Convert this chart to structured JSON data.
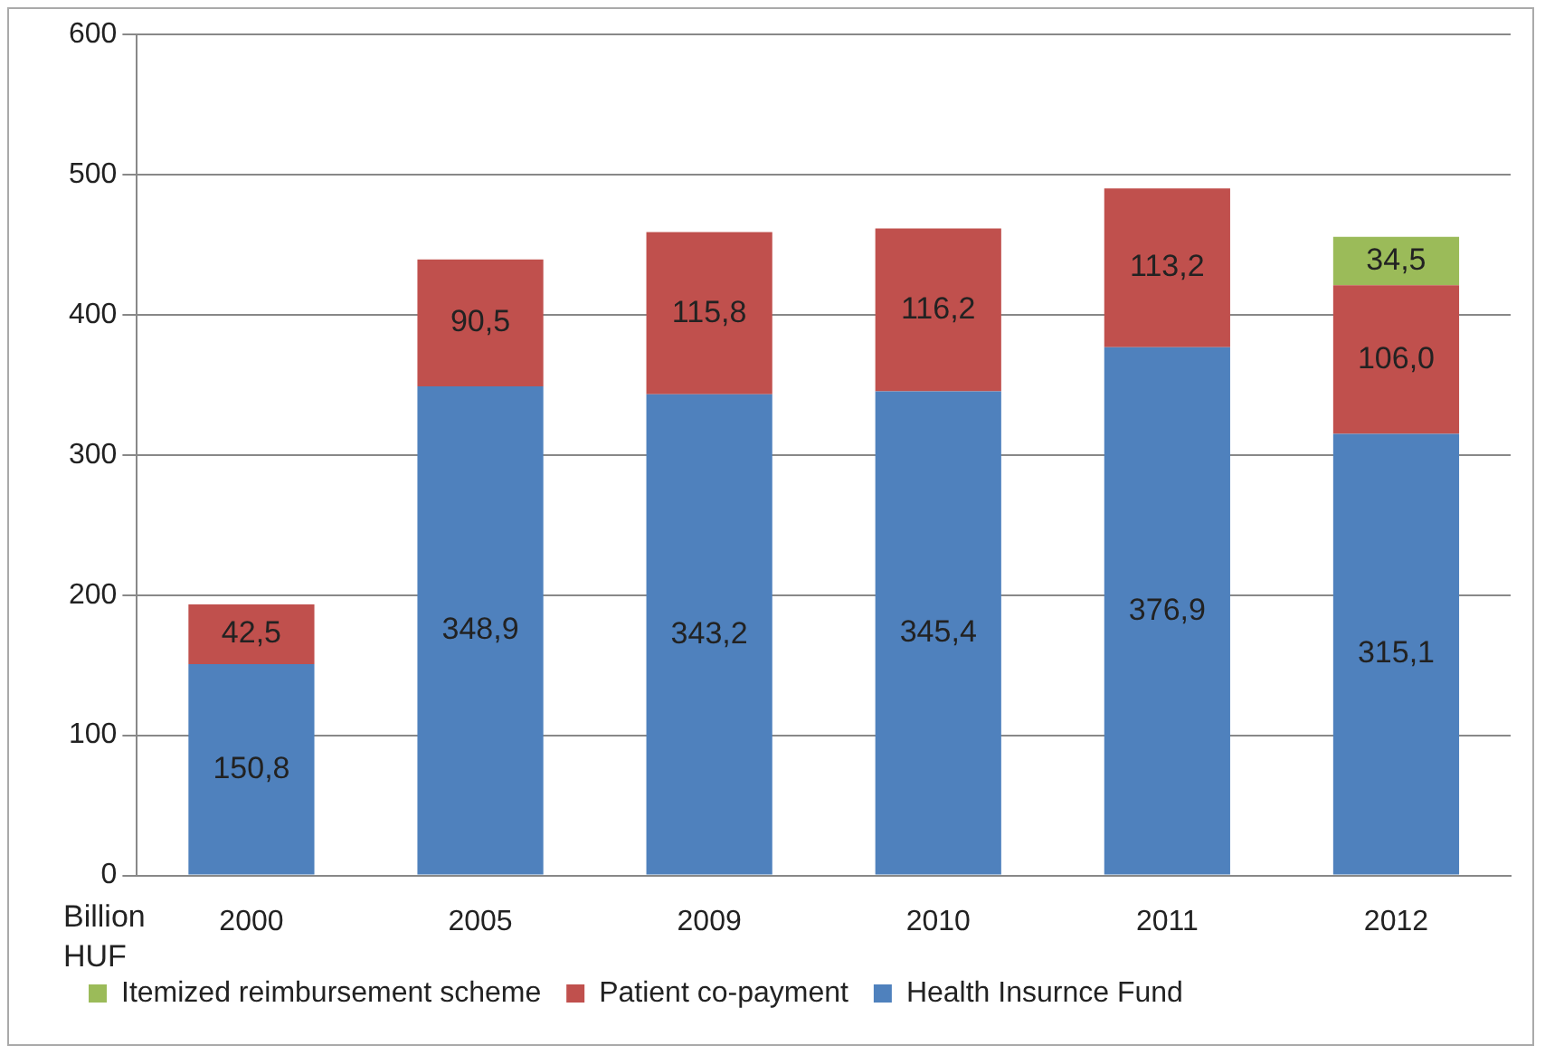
{
  "chart_data": {
    "type": "bar",
    "stacked": true,
    "ylabel": "Billion HUF",
    "categories": [
      "2000",
      "2005",
      "2009",
      "2010",
      "2011",
      "2012"
    ],
    "series": [
      {
        "name": "Health Insurnce Fund",
        "color": "#4f81bd",
        "values": [
          150.8,
          348.9,
          343.2,
          345.4,
          376.9,
          315.1
        ],
        "value_labels": [
          "150,8",
          "348,9",
          "343,2",
          "345,4",
          "376,9",
          "315,1"
        ]
      },
      {
        "name": "Patient co-payment",
        "color": "#c0504d",
        "values": [
          42.5,
          90.5,
          115.8,
          116.2,
          113.2,
          106.0
        ],
        "value_labels": [
          "42,5",
          "90,5",
          "115,8",
          "116,2",
          "113,2",
          "106,0"
        ]
      },
      {
        "name": "Itemized reimbursement scheme",
        "color": "#9bbb59",
        "values": [
          null,
          null,
          null,
          null,
          null,
          34.5
        ],
        "value_labels": [
          null,
          null,
          null,
          null,
          null,
          "34,5"
        ]
      }
    ],
    "ylim": [
      0,
      600
    ],
    "yticks": [
      0,
      100,
      200,
      300,
      400,
      500,
      600
    ],
    "grid": "y",
    "legend": "bottom"
  }
}
